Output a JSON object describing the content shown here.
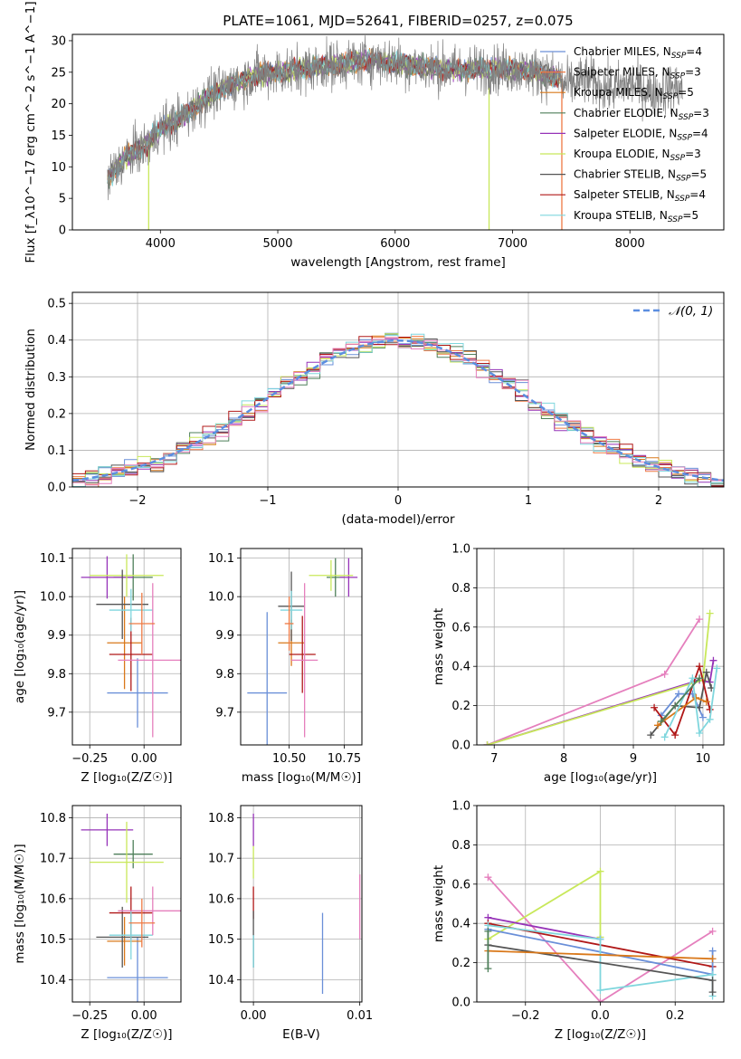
{
  "figure_title": "PLATE=1061, MJD=52641, FIBERID=0257, z=0.075",
  "colors": {
    "Chabrier MILES": "#6a8fd8",
    "Salpeter MILES": "#ee7a44",
    "Kroupa MILES": "#d9781a",
    "Chabrier ELODIE": "#4e7f5a",
    "Salpeter ELODIE": "#9633b8",
    "Kroupa ELODIE": "#c8e85a",
    "Chabrier STELIB": "#555555",
    "Salpeter STELIB": "#b01818",
    "Kroupa STELIB": "#7fd6dd",
    "extra pink": "#e57fbd",
    "gaussian": "#5b8ee0",
    "data": "#808080"
  },
  "chart_data": [
    {
      "id": "spectrum",
      "type": "line",
      "xlabel": "wavelength [Angstrom, rest frame]",
      "ylabel": "Flux [f_λ10^−17 erg cm^−2 s^−1 A^−1]",
      "xlim": [
        3250,
        8800
      ],
      "ylim": [
        0,
        31
      ],
      "xticks": [
        4000,
        5000,
        6000,
        7000,
        8000
      ],
      "yticks": [
        0,
        5,
        10,
        15,
        20,
        25,
        30
      ],
      "continuum": {
        "x": [
          3550,
          3700,
          3850,
          4000,
          4200,
          4400,
          4600,
          4800,
          5000,
          5200,
          5400,
          5600,
          5800,
          6000,
          6200,
          6400,
          6600,
          6800,
          7000,
          7200,
          7400
        ],
        "y": [
          8,
          11.5,
          13,
          16,
          18,
          21,
          23,
          24.5,
          25,
          25.5,
          26,
          26.5,
          27,
          26.5,
          26,
          25.5,
          25.5,
          25.5,
          25.5,
          25,
          24
        ]
      },
      "noise_amplitude": 2.8,
      "data_extent": [
        3550,
        8450
      ],
      "model_drops": [
        {
          "name": "Kroupa ELODIE",
          "x": 3900
        },
        {
          "name": "Kroupa ELODIE",
          "x": 6800
        },
        {
          "name": "Salpeter MILES",
          "x": 7420
        }
      ],
      "legend_loc": "upper right",
      "legend": [
        {
          "name": "Chabrier MILES",
          "n": "4"
        },
        {
          "name": "Salpeter MILES",
          "n": "3"
        },
        {
          "name": "Kroupa MILES",
          "n": "5"
        },
        {
          "name": "Chabrier ELODIE",
          "n": "3"
        },
        {
          "name": "Salpeter ELODIE",
          "n": "4"
        },
        {
          "name": "Kroupa ELODIE",
          "n": "3"
        },
        {
          "name": "Chabrier STELIB",
          "n": "5"
        },
        {
          "name": "Salpeter STELIB",
          "n": "4"
        },
        {
          "name": "Kroupa STELIB",
          "n": "5"
        }
      ],
      "legend_n_label": "N",
      "legend_n_sub": "SSP",
      "grid": false
    },
    {
      "id": "residuals",
      "type": "histogram",
      "xlabel": "(data-model)/error",
      "ylabel": "Normed distribution",
      "xlim": [
        -2.5,
        2.5
      ],
      "ylim": [
        0,
        0.53
      ],
      "xticks": [
        -2,
        -1,
        0,
        1,
        2
      ],
      "xtick_labels": [
        "−2",
        "−1",
        "0",
        "1",
        "2"
      ],
      "yticks": [
        0,
        0.1,
        0.2,
        0.3,
        0.4,
        0.5
      ],
      "ytick_labels": [
        "0.0",
        "0.1",
        "0.2",
        "0.3",
        "0.4",
        "0.5"
      ],
      "bin_width": 0.1,
      "gaussian_label": "𝒩(0, 1)",
      "legend_loc": "upper right",
      "grid": true
    },
    {
      "id": "age-vs-z",
      "type": "errorbar",
      "xlabel": "Z [log₁₀(Z/Z☉)]",
      "ylabel": "age  [log₁₀(age/yr)]",
      "xlim": [
        -0.33,
        0.17
      ],
      "ylim": [
        9.615,
        10.125
      ],
      "xticks": [
        -0.25,
        0.0
      ],
      "xtick_labels": [
        "−0.25",
        "0.00"
      ],
      "yticks": [
        9.7,
        9.8,
        9.9,
        10.0,
        10.1
      ],
      "ytick_labels": [
        "9.7",
        "9.8",
        "9.9",
        "10.0",
        "10.1"
      ],
      "points": [
        {
          "c": "#6a8fd8",
          "x": -0.03,
          "xe": 0.14,
          "y": 9.75,
          "ye": 0.09
        },
        {
          "c": "#d9781a",
          "x": -0.09,
          "xe": 0.08,
          "y": 9.88,
          "ye": 0.12
        },
        {
          "c": "#4e7f5a",
          "x": -0.05,
          "xe": 0.09,
          "y": 10.05,
          "ye": 0.06
        },
        {
          "c": "#9633b8",
          "x": -0.17,
          "xe": 0.12,
          "y": 10.05,
          "ye": 0.055
        },
        {
          "c": "#c8e85a",
          "x": -0.08,
          "xe": 0.17,
          "y": 10.055,
          "ye": 0.055
        },
        {
          "c": "#555555",
          "x": -0.1,
          "xe": 0.12,
          "y": 9.98,
          "ye": 0.09
        },
        {
          "c": "#b01818",
          "x": -0.06,
          "xe": 0.1,
          "y": 9.85,
          "ye": 0.095
        },
        {
          "c": "#7fd6dd",
          "x": -0.06,
          "xe": 0.1,
          "y": 9.965,
          "ye": 0.055
        },
        {
          "c": "#e57fbd",
          "x": 0.04,
          "xe": 0.16,
          "y": 9.835,
          "ye": 0.2
        },
        {
          "c": "#ee7a44",
          "x": -0.01,
          "xe": 0.06,
          "y": 9.93,
          "ye": 0.08
        }
      ],
      "grid": true
    },
    {
      "id": "age-vs-mass",
      "type": "errorbar",
      "xlabel": "mass [log₁₀(M/M☉)]",
      "ylabel": "",
      "xlim": [
        10.28,
        10.83
      ],
      "ylim": [
        9.615,
        10.125
      ],
      "xticks": [
        10.5,
        10.75
      ],
      "xtick_labels": [
        "10.50",
        "10.75"
      ],
      "yticks": [
        9.7,
        9.8,
        9.9,
        10.0,
        10.1
      ],
      "ytick_labels": [
        "9.7",
        "9.8",
        "9.9",
        "10.0",
        "10.1"
      ],
      "points": [
        {
          "c": "#6a8fd8",
          "x": 10.4,
          "xe": 0.09,
          "y": 9.75,
          "ye": 0.21
        },
        {
          "c": "#d9781a",
          "x": 10.51,
          "xe": 0.06,
          "y": 9.88,
          "ye": 0.06
        },
        {
          "c": "#4e7f5a",
          "x": 10.71,
          "xe": 0.04,
          "y": 10.05,
          "ye": 0.05
        },
        {
          "c": "#9633b8",
          "x": 10.77,
          "xe": 0.04,
          "y": 10.05,
          "ye": 0.05
        },
        {
          "c": "#c8e85a",
          "x": 10.69,
          "xe": 0.1,
          "y": 10.055,
          "ye": 0.04
        },
        {
          "c": "#555555",
          "x": 10.51,
          "xe": 0.06,
          "y": 9.975,
          "ye": 0.09
        },
        {
          "c": "#b01818",
          "x": 10.56,
          "xe": 0.06,
          "y": 9.85,
          "ye": 0.1
        },
        {
          "c": "#7fd6dd",
          "x": 10.51,
          "xe": 0.05,
          "y": 9.965,
          "ye": 0.05
        },
        {
          "c": "#e57fbd",
          "x": 10.57,
          "xe": 0.06,
          "y": 9.835,
          "ye": 0.2
        },
        {
          "c": "#ee7a44",
          "x": 10.5,
          "xe": 0.02,
          "y": 9.93,
          "ye": 0.07
        }
      ],
      "grid": true
    },
    {
      "id": "weight-vs-age",
      "type": "line",
      "xlabel": "age  [log₁₀(age/yr)]",
      "ylabel": "mass weight",
      "xlim": [
        6.75,
        10.3
      ],
      "ylim": [
        0,
        1
      ],
      "xticks": [
        7,
        8,
        9,
        10
      ],
      "yticks": [
        0,
        0.2,
        0.4,
        0.6,
        0.8,
        1.0
      ],
      "ytick_labels": [
        "0.0",
        "0.2",
        "0.4",
        "0.6",
        "0.8",
        "1.0"
      ],
      "series": [
        {
          "c": "#e57fbd",
          "x": [
            6.9,
            9.45,
            9.95
          ],
          "y": [
            0.0,
            0.36,
            0.64
          ]
        },
        {
          "c": "#9633b8",
          "x": [
            6.9,
            9.95,
            10.1,
            10.15
          ],
          "y": [
            0.0,
            0.33,
            0.32,
            0.43
          ]
        },
        {
          "c": "#c8e85a",
          "x": [
            6.9,
            10.0,
            10.1
          ],
          "y": [
            0.0,
            0.33,
            0.67
          ]
        },
        {
          "c": "#6a8fd8",
          "x": [
            9.4,
            9.65,
            9.85,
            10.0
          ],
          "y": [
            0.15,
            0.26,
            0.26,
            0.14
          ]
        },
        {
          "c": "#555555",
          "x": [
            9.25,
            9.6,
            9.95,
            10.05,
            10.12
          ],
          "y": [
            0.05,
            0.2,
            0.19,
            0.37,
            0.29
          ]
        },
        {
          "c": "#b01818",
          "x": [
            9.3,
            9.6,
            9.95,
            10.1
          ],
          "y": [
            0.19,
            0.05,
            0.4,
            0.18
          ]
        },
        {
          "c": "#d9781a",
          "x": [
            9.35,
            9.9,
            10.05
          ],
          "y": [
            0.1,
            0.24,
            0.22
          ]
        },
        {
          "c": "#7fd6dd",
          "x": [
            9.45,
            9.85,
            9.95,
            10.1,
            10.2
          ],
          "y": [
            0.04,
            0.34,
            0.06,
            0.13,
            0.39
          ]
        },
        {
          "c": "#4e7f5a",
          "x": [
            9.4,
            9.95
          ],
          "y": [
            0.12,
            0.34
          ]
        }
      ],
      "grid": true
    },
    {
      "id": "mass-vs-z",
      "type": "errorbar",
      "xlabel": "Z [log₁₀(Z/Z☉)]",
      "ylabel": "mass [log₁₀(M/M☉)]",
      "xlim": [
        -0.33,
        0.17
      ],
      "ylim": [
        10.345,
        10.83
      ],
      "xticks": [
        -0.25,
        0.0
      ],
      "xtick_labels": [
        "−0.25",
        "0.00"
      ],
      "yticks": [
        10.4,
        10.5,
        10.6,
        10.7,
        10.8
      ],
      "ytick_labels": [
        "10.4",
        "10.5",
        "10.6",
        "10.7",
        "10.8"
      ],
      "points": [
        {
          "c": "#6a8fd8",
          "x": -0.03,
          "xe": 0.14,
          "y": 10.405,
          "ye": 0.1
        },
        {
          "c": "#d9781a",
          "x": -0.09,
          "xe": 0.08,
          "y": 10.495,
          "ye": 0.06
        },
        {
          "c": "#4e7f5a",
          "x": -0.05,
          "xe": 0.09,
          "y": 10.71,
          "ye": 0.035
        },
        {
          "c": "#9633b8",
          "x": -0.17,
          "xe": 0.12,
          "y": 10.77,
          "ye": 0.04
        },
        {
          "c": "#c8e85a",
          "x": -0.08,
          "xe": 0.17,
          "y": 10.69,
          "ye": 0.1
        },
        {
          "c": "#555555",
          "x": -0.1,
          "xe": 0.12,
          "y": 10.505,
          "ye": 0.075
        },
        {
          "c": "#b01818",
          "x": -0.06,
          "xe": 0.1,
          "y": 10.565,
          "ye": 0.065
        },
        {
          "c": "#7fd6dd",
          "x": -0.06,
          "xe": 0.1,
          "y": 10.51,
          "ye": 0.06
        },
        {
          "c": "#e57fbd",
          "x": 0.04,
          "xe": 0.16,
          "y": 10.57,
          "ye": 0.06
        },
        {
          "c": "#ee7a44",
          "x": -0.01,
          "xe": 0.06,
          "y": 10.54,
          "ye": 0.06
        }
      ],
      "grid": true
    },
    {
      "id": "mass-vs-ebv",
      "type": "errorbar",
      "xlabel": "E(B-V)",
      "ylabel": "",
      "xlim": [
        -0.0012,
        0.0102
      ],
      "ylim": [
        10.345,
        10.83
      ],
      "xticks": [
        0.0,
        0.01
      ],
      "xtick_labels": [
        "0.00",
        "0.01"
      ],
      "yticks": [
        10.4,
        10.5,
        10.6,
        10.7,
        10.8
      ],
      "ytick_labels": [
        "10.4",
        "10.5",
        "10.6",
        "10.7",
        "10.8"
      ],
      "points": [
        {
          "c": "#6a8fd8",
          "x": 0.0065,
          "xe": 0,
          "y": 10.465,
          "ye": 0.1
        },
        {
          "c": "#9633b8",
          "x": 0.0,
          "xe": 0,
          "y": 10.77,
          "ye": 0.04
        },
        {
          "c": "#c8e85a",
          "x": 0.0,
          "xe": 0,
          "y": 10.69,
          "ye": 0.04
        },
        {
          "c": "#b01818",
          "x": 0.0,
          "xe": 0,
          "y": 10.59,
          "ye": 0.04
        },
        {
          "c": "#555555",
          "x": 0.0,
          "xe": 0,
          "y": 10.5,
          "ye": 0.07
        },
        {
          "c": "#7fd6dd",
          "x": 0.0,
          "xe": 0,
          "y": 10.47,
          "ye": 0.04
        },
        {
          "c": "#e57fbd",
          "x": 0.01,
          "xe": 0,
          "y": 10.58,
          "ye": 0.08
        }
      ],
      "grid": true
    },
    {
      "id": "weight-vs-z",
      "type": "line",
      "xlabel": "Z [log₁₀(Z/Z☉)]",
      "ylabel": "mass weight",
      "xlim": [
        -0.33,
        0.33
      ],
      "ylim": [
        0,
        1
      ],
      "xticks": [
        -0.2,
        0.0,
        0.2
      ],
      "xtick_labels": [
        "−0.2",
        "0.0",
        "0.2"
      ],
      "yticks": [
        0,
        0.2,
        0.4,
        0.6,
        0.8,
        1.0
      ],
      "ytick_labels": [
        "0.0",
        "0.2",
        "0.4",
        "0.6",
        "0.8",
        "1.0"
      ],
      "series": [
        {
          "c": "#e57fbd",
          "x": [
            -0.3,
            0.0,
            0.3
          ],
          "y": [
            0.635,
            0.0,
            0.36
          ]
        },
        {
          "c": "#c8e85a",
          "x": [
            -0.3,
            0.0,
            0.0
          ],
          "y": [
            0.32,
            0.665,
            0.33
          ]
        },
        {
          "c": "#9633b8",
          "x": [
            -0.3,
            0.0
          ],
          "y": [
            0.43,
            0.32
          ]
        },
        {
          "c": "#b01818",
          "x": [
            -0.3,
            0.3
          ],
          "y": [
            0.4,
            0.18
          ]
        },
        {
          "c": "#6a8fd8",
          "x": [
            -0.3,
            0.3,
            0.3
          ],
          "y": [
            0.37,
            0.14,
            0.26
          ]
        },
        {
          "c": "#7fd6dd",
          "x": [
            -0.3,
            0.0,
            0.0,
            0.3,
            0.3
          ],
          "y": [
            0.39,
            0.32,
            0.06,
            0.14,
            0.03
          ]
        },
        {
          "c": "#555555",
          "x": [
            -0.3,
            0.3,
            0.3
          ],
          "y": [
            0.29,
            0.11,
            0.05
          ]
        },
        {
          "c": "#d9781a",
          "x": [
            -0.3,
            0.3
          ],
          "y": [
            0.26,
            0.22
          ]
        },
        {
          "c": "#4e7f5a",
          "x": [
            -0.3,
            -0.3
          ],
          "y": [
            0.17,
            0.36
          ]
        }
      ],
      "grid": true
    }
  ]
}
